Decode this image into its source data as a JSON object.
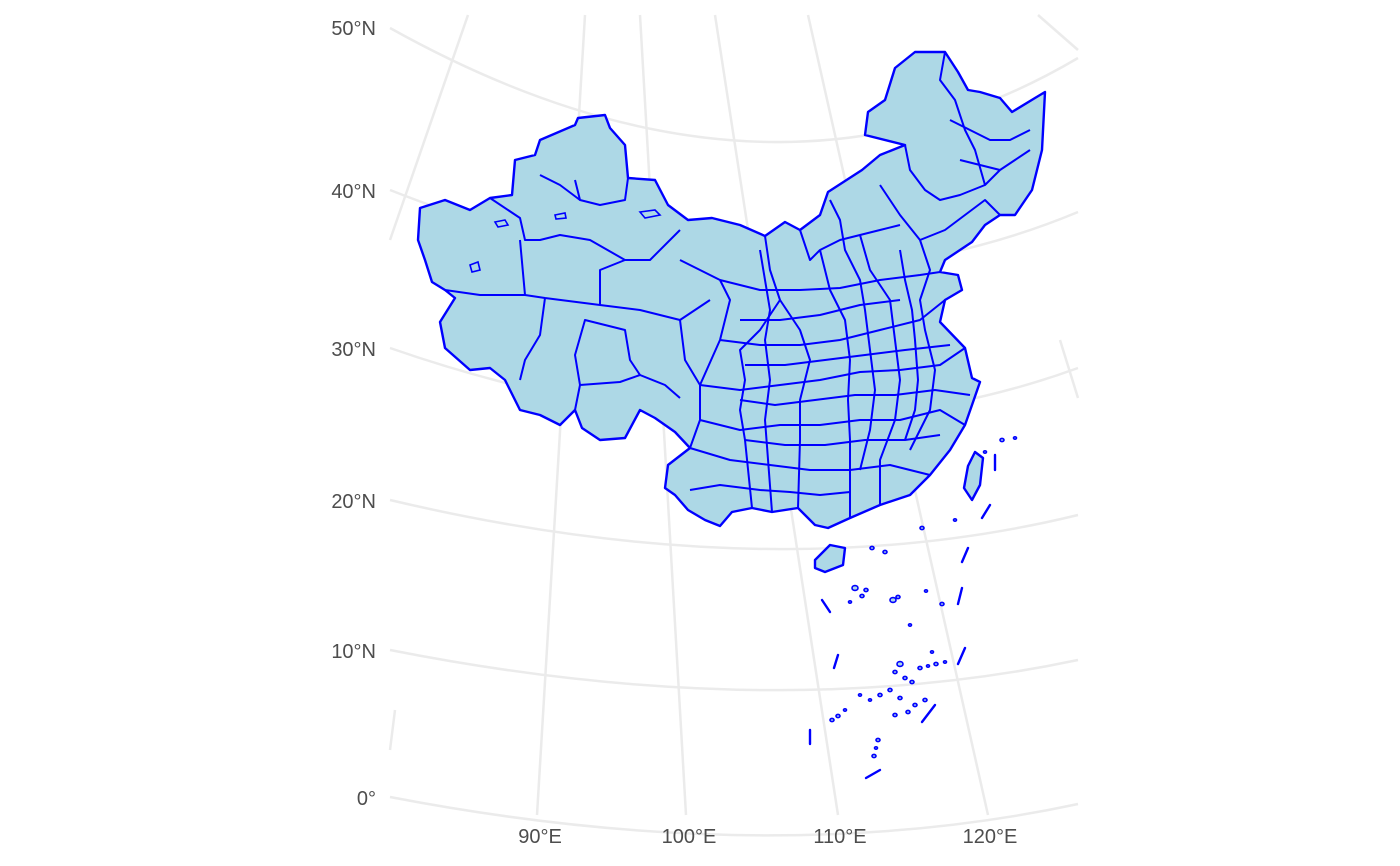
{
  "map": {
    "projection": "conic",
    "colors": {
      "fill": "#add8e6",
      "border": "#0000ff",
      "graticule": "#ebebeb",
      "label": "#4d4d4d",
      "background": "#ffffff"
    },
    "lat_labels": [
      "50°N",
      "40°N",
      "30°N",
      "20°N",
      "10°N",
      "0°"
    ],
    "lon_labels": [
      "90°E",
      "100°E",
      "110°E",
      "120°E"
    ]
  }
}
